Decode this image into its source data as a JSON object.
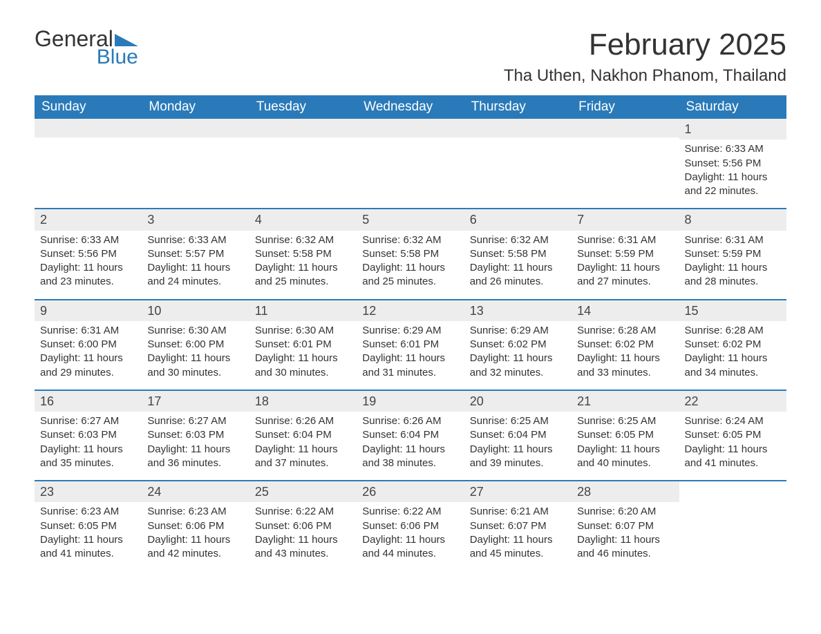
{
  "logo": {
    "word1": "General",
    "word2": "Blue"
  },
  "title": "February 2025",
  "location": "Tha Uthen, Nakhon Phanom, Thailand",
  "colors": {
    "header_bg": "#2a7ab9",
    "header_text": "#ffffff",
    "row_accent": "#2a7ab9",
    "daynum_bg": "#ededed",
    "body_text": "#333333",
    "logo_blue": "#2a7ab9",
    "background": "#ffffff"
  },
  "day_labels": [
    "Sunday",
    "Monday",
    "Tuesday",
    "Wednesday",
    "Thursday",
    "Friday",
    "Saturday"
  ],
  "weeks": [
    [
      {
        "empty": true
      },
      {
        "empty": true
      },
      {
        "empty": true
      },
      {
        "empty": true
      },
      {
        "empty": true
      },
      {
        "empty": true
      },
      {
        "day": "1",
        "sunrise": "Sunrise: 6:33 AM",
        "sunset": "Sunset: 5:56 PM",
        "daylight1": "Daylight: 11 hours",
        "daylight2": "and 22 minutes."
      }
    ],
    [
      {
        "day": "2",
        "sunrise": "Sunrise: 6:33 AM",
        "sunset": "Sunset: 5:56 PM",
        "daylight1": "Daylight: 11 hours",
        "daylight2": "and 23 minutes."
      },
      {
        "day": "3",
        "sunrise": "Sunrise: 6:33 AM",
        "sunset": "Sunset: 5:57 PM",
        "daylight1": "Daylight: 11 hours",
        "daylight2": "and 24 minutes."
      },
      {
        "day": "4",
        "sunrise": "Sunrise: 6:32 AM",
        "sunset": "Sunset: 5:58 PM",
        "daylight1": "Daylight: 11 hours",
        "daylight2": "and 25 minutes."
      },
      {
        "day": "5",
        "sunrise": "Sunrise: 6:32 AM",
        "sunset": "Sunset: 5:58 PM",
        "daylight1": "Daylight: 11 hours",
        "daylight2": "and 25 minutes."
      },
      {
        "day": "6",
        "sunrise": "Sunrise: 6:32 AM",
        "sunset": "Sunset: 5:58 PM",
        "daylight1": "Daylight: 11 hours",
        "daylight2": "and 26 minutes."
      },
      {
        "day": "7",
        "sunrise": "Sunrise: 6:31 AM",
        "sunset": "Sunset: 5:59 PM",
        "daylight1": "Daylight: 11 hours",
        "daylight2": "and 27 minutes."
      },
      {
        "day": "8",
        "sunrise": "Sunrise: 6:31 AM",
        "sunset": "Sunset: 5:59 PM",
        "daylight1": "Daylight: 11 hours",
        "daylight2": "and 28 minutes."
      }
    ],
    [
      {
        "day": "9",
        "sunrise": "Sunrise: 6:31 AM",
        "sunset": "Sunset: 6:00 PM",
        "daylight1": "Daylight: 11 hours",
        "daylight2": "and 29 minutes."
      },
      {
        "day": "10",
        "sunrise": "Sunrise: 6:30 AM",
        "sunset": "Sunset: 6:00 PM",
        "daylight1": "Daylight: 11 hours",
        "daylight2": "and 30 minutes."
      },
      {
        "day": "11",
        "sunrise": "Sunrise: 6:30 AM",
        "sunset": "Sunset: 6:01 PM",
        "daylight1": "Daylight: 11 hours",
        "daylight2": "and 30 minutes."
      },
      {
        "day": "12",
        "sunrise": "Sunrise: 6:29 AM",
        "sunset": "Sunset: 6:01 PM",
        "daylight1": "Daylight: 11 hours",
        "daylight2": "and 31 minutes."
      },
      {
        "day": "13",
        "sunrise": "Sunrise: 6:29 AM",
        "sunset": "Sunset: 6:02 PM",
        "daylight1": "Daylight: 11 hours",
        "daylight2": "and 32 minutes."
      },
      {
        "day": "14",
        "sunrise": "Sunrise: 6:28 AM",
        "sunset": "Sunset: 6:02 PM",
        "daylight1": "Daylight: 11 hours",
        "daylight2": "and 33 minutes."
      },
      {
        "day": "15",
        "sunrise": "Sunrise: 6:28 AM",
        "sunset": "Sunset: 6:02 PM",
        "daylight1": "Daylight: 11 hours",
        "daylight2": "and 34 minutes."
      }
    ],
    [
      {
        "day": "16",
        "sunrise": "Sunrise: 6:27 AM",
        "sunset": "Sunset: 6:03 PM",
        "daylight1": "Daylight: 11 hours",
        "daylight2": "and 35 minutes."
      },
      {
        "day": "17",
        "sunrise": "Sunrise: 6:27 AM",
        "sunset": "Sunset: 6:03 PM",
        "daylight1": "Daylight: 11 hours",
        "daylight2": "and 36 minutes."
      },
      {
        "day": "18",
        "sunrise": "Sunrise: 6:26 AM",
        "sunset": "Sunset: 6:04 PM",
        "daylight1": "Daylight: 11 hours",
        "daylight2": "and 37 minutes."
      },
      {
        "day": "19",
        "sunrise": "Sunrise: 6:26 AM",
        "sunset": "Sunset: 6:04 PM",
        "daylight1": "Daylight: 11 hours",
        "daylight2": "and 38 minutes."
      },
      {
        "day": "20",
        "sunrise": "Sunrise: 6:25 AM",
        "sunset": "Sunset: 6:04 PM",
        "daylight1": "Daylight: 11 hours",
        "daylight2": "and 39 minutes."
      },
      {
        "day": "21",
        "sunrise": "Sunrise: 6:25 AM",
        "sunset": "Sunset: 6:05 PM",
        "daylight1": "Daylight: 11 hours",
        "daylight2": "and 40 minutes."
      },
      {
        "day": "22",
        "sunrise": "Sunrise: 6:24 AM",
        "sunset": "Sunset: 6:05 PM",
        "daylight1": "Daylight: 11 hours",
        "daylight2": "and 41 minutes."
      }
    ],
    [
      {
        "day": "23",
        "sunrise": "Sunrise: 6:23 AM",
        "sunset": "Sunset: 6:05 PM",
        "daylight1": "Daylight: 11 hours",
        "daylight2": "and 41 minutes."
      },
      {
        "day": "24",
        "sunrise": "Sunrise: 6:23 AM",
        "sunset": "Sunset: 6:06 PM",
        "daylight1": "Daylight: 11 hours",
        "daylight2": "and 42 minutes."
      },
      {
        "day": "25",
        "sunrise": "Sunrise: 6:22 AM",
        "sunset": "Sunset: 6:06 PM",
        "daylight1": "Daylight: 11 hours",
        "daylight2": "and 43 minutes."
      },
      {
        "day": "26",
        "sunrise": "Sunrise: 6:22 AM",
        "sunset": "Sunset: 6:06 PM",
        "daylight1": "Daylight: 11 hours",
        "daylight2": "and 44 minutes."
      },
      {
        "day": "27",
        "sunrise": "Sunrise: 6:21 AM",
        "sunset": "Sunset: 6:07 PM",
        "daylight1": "Daylight: 11 hours",
        "daylight2": "and 45 minutes."
      },
      {
        "day": "28",
        "sunrise": "Sunrise: 6:20 AM",
        "sunset": "Sunset: 6:07 PM",
        "daylight1": "Daylight: 11 hours",
        "daylight2": "and 46 minutes."
      },
      {
        "empty": true,
        "noBg": true
      }
    ]
  ]
}
